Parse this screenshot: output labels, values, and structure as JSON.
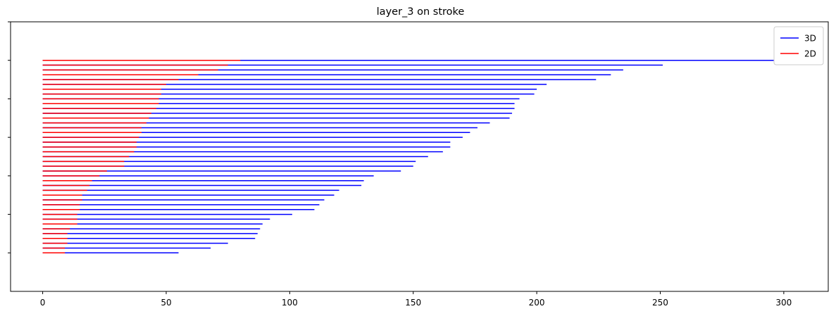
{
  "chart_data": {
    "type": "horizontal-segment-lines",
    "title": "layer_3 on stroke",
    "xlabel": "",
    "ylabel": "",
    "xlim": [
      -13,
      318
    ],
    "ylim": [
      -8,
      48
    ],
    "x_ticks": [
      0,
      50,
      100,
      150,
      200,
      250,
      300
    ],
    "y_ticks": [
      0,
      8,
      16,
      24,
      32,
      40,
      48
    ],
    "legend": {
      "placement": "top-right",
      "entries": [
        {
          "label": "3D",
          "color": "#0000ff"
        },
        {
          "label": "2D",
          "color": "#ff0000"
        }
      ]
    },
    "grid": false,
    "series": [
      {
        "name": "3D",
        "color": "#0000ff",
        "values": [
          55,
          68,
          75,
          86,
          87,
          88,
          89,
          92,
          101,
          110,
          112,
          114,
          118,
          120,
          129,
          130,
          134,
          145,
          150,
          151,
          156,
          162,
          165,
          165,
          170,
          173,
          176,
          181,
          189,
          190,
          191,
          191,
          193,
          199,
          200,
          204,
          224,
          230,
          235,
          251,
          304
        ]
      },
      {
        "name": "2D",
        "color": "#ff0000",
        "values": [
          9,
          9,
          10,
          10,
          10,
          11,
          14,
          14,
          14,
          15,
          15,
          16,
          16,
          18,
          19,
          20,
          23,
          26,
          33,
          33,
          35,
          37,
          38,
          38,
          39,
          40,
          40,
          42,
          43,
          44,
          46,
          47,
          47,
          48,
          48,
          50,
          55,
          63,
          71,
          75,
          80
        ]
      }
    ]
  }
}
